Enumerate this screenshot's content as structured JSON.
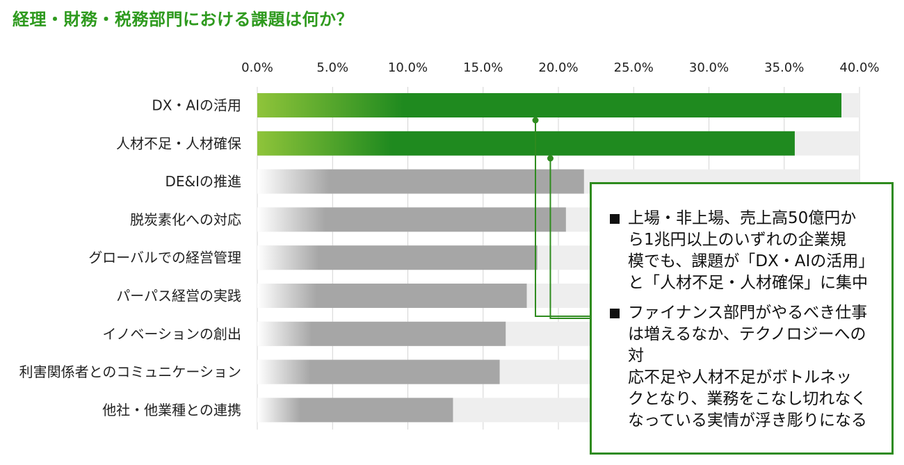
{
  "title": "経理・財務・税務部門における課題は何か？",
  "chart_data": {
    "type": "bar",
    "orientation": "horizontal",
    "categories": [
      "DX・AIの活用",
      "人材不足・人材確保",
      "DE&Iの推進",
      "脱炭素化への対応",
      "グローバルでの経営管理",
      "パーパス経営の実践",
      "イノベーションの創出",
      "利害関係者とのコミュニケーション",
      "他社・他業種との連携"
    ],
    "values": [
      38.8,
      35.7,
      21.7,
      20.5,
      18.6,
      17.9,
      16.5,
      16.1,
      13.0
    ],
    "highlighted": [
      true,
      true,
      false,
      false,
      false,
      false,
      false,
      false,
      false
    ],
    "xlim": [
      0,
      40
    ],
    "tick_values": [
      0,
      5,
      10,
      15,
      20,
      25,
      30,
      35,
      40
    ],
    "tick_labels": [
      "0.0%",
      "5.0%",
      "10.0%",
      "15.0%",
      "20.0%",
      "25.0%",
      "30.0%",
      "35.0%",
      "40.0%"
    ],
    "axis_position": "top",
    "grid": true,
    "colors": {
      "highlight": "#1f8a1f",
      "highlight_start": "#8fc43a",
      "normal": "#a6a6a6",
      "normal_start": "#ffffff",
      "track": "#eeeeee",
      "grid": "#d4d4d4",
      "connector": "#2e8b1e"
    }
  },
  "callout": {
    "notes": [
      "上場・非上場、売上高50億円か\nら1兆円以上のいずれの企業規\n模でも、課題が「DX・AIの活用」\nと「人材不足・人材確保」に集中",
      "ファイナンス部門がやるべき仕事\nは増えるなか、テクノロジーへの対\n応不足や人材不足がボトルネッ\nクとなり、業務をこなし切れなく\nなっている実情が浮き彫りになる"
    ]
  }
}
